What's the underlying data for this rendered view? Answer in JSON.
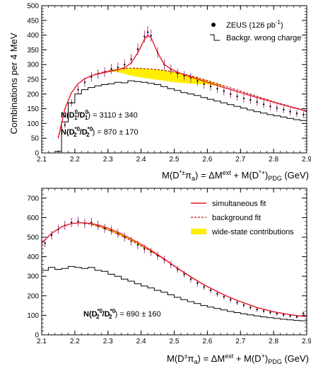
{
  "chart_data": [
    {
      "type": "line",
      "panel": "top",
      "xlim": [
        2.1,
        2.9
      ],
      "ylim": [
        0,
        500
      ],
      "xticks": [
        "2.1",
        "2.2",
        "2.3",
        "2.4",
        "2.5",
        "2.6",
        "2.7",
        "2.8",
        "2.9"
      ],
      "yticks": [
        "0",
        "50",
        "100",
        "150",
        "200",
        "250",
        "300",
        "350",
        "400",
        "450",
        "500"
      ],
      "xlabel_parts": {
        "main": "M(D",
        "sup1": "*±",
        "mid1": "π",
        "sub1": "a",
        "mid2": ") = ΔM",
        "sup2": "ext",
        "mid3": " + M(D",
        "sup3": "*+",
        "mid4": ")",
        "sub2": "PDG",
        "tail": " (GeV)"
      },
      "ylabel": "Combinations per 4 MeV",
      "legend": {
        "placement": "top-right",
        "data_label": {
          "main": "ZEUS (126 pb",
          "sup": "-1",
          "tail": ")"
        },
        "bkg_label": "Backgr. wrong charge"
      },
      "annotations": [
        {
          "pre": "N(D",
          "s1sup": "0",
          "s1sub": "1",
          "slash": "/D",
          "s2sup": "0",
          "s2sub": "1",
          "post": ") = 3110 ± 340"
        },
        {
          "pre": "N(D",
          "s1sup": "*0",
          "s1sub": "2",
          "slash": "/D",
          "s2sup": "*0",
          "s2sub": "2",
          "post": ") = 870 ± 170"
        }
      ],
      "data_points": {
        "x": [
          2.15,
          2.17,
          2.19,
          2.21,
          2.23,
          2.25,
          2.27,
          2.29,
          2.31,
          2.33,
          2.35,
          2.37,
          2.39,
          2.41,
          2.42,
          2.43,
          2.45,
          2.47,
          2.49,
          2.51,
          2.53,
          2.55,
          2.57,
          2.59,
          2.61,
          2.63,
          2.65,
          2.67,
          2.69,
          2.71,
          2.73,
          2.75,
          2.77,
          2.79,
          2.81,
          2.83,
          2.85,
          2.87,
          2.89
        ],
        "y": [
          5,
          95,
          170,
          215,
          240,
          258,
          268,
          274,
          285,
          290,
          300,
          318,
          352,
          395,
          410,
          398,
          340,
          300,
          283,
          270,
          262,
          255,
          244,
          234,
          226,
          218,
          210,
          200,
          192,
          185,
          180,
          173,
          165,
          158,
          152,
          147,
          140,
          134,
          130
        ]
      },
      "background_wrong_charge": {
        "x": [
          2.15,
          2.17,
          2.19,
          2.21,
          2.23,
          2.25,
          2.27,
          2.29,
          2.31,
          2.33,
          2.35,
          2.37,
          2.39,
          2.41,
          2.43,
          2.45,
          2.47,
          2.49,
          2.51,
          2.53,
          2.55,
          2.57,
          2.59,
          2.61,
          2.63,
          2.65,
          2.67,
          2.69,
          2.71,
          2.73,
          2.75,
          2.77,
          2.79,
          2.81,
          2.83,
          2.85,
          2.87,
          2.89
        ],
        "y": [
          5,
          105,
          170,
          200,
          215,
          222,
          228,
          232,
          235,
          240,
          238,
          245,
          242,
          240,
          236,
          232,
          225,
          218,
          212,
          205,
          200,
          195,
          188,
          182,
          176,
          170,
          164,
          158,
          152,
          146,
          140,
          135,
          130,
          126,
          122,
          117,
          113,
          110
        ]
      },
      "simultaneous_fit": {
        "x": [
          2.15,
          2.17,
          2.19,
          2.21,
          2.23,
          2.25,
          2.27,
          2.29,
          2.31,
          2.33,
          2.35,
          2.37,
          2.39,
          2.41,
          2.42,
          2.43,
          2.45,
          2.47,
          2.49,
          2.51,
          2.55,
          2.6,
          2.65,
          2.7,
          2.75,
          2.8,
          2.85,
          2.9
        ],
        "y": [
          50,
          150,
          205,
          235,
          252,
          262,
          268,
          273,
          278,
          283,
          290,
          305,
          340,
          385,
          400,
          392,
          340,
          300,
          285,
          274,
          258,
          240,
          222,
          205,
          188,
          172,
          156,
          142
        ]
      },
      "background_fit": {
        "x": [
          2.15,
          2.17,
          2.19,
          2.21,
          2.23,
          2.25,
          2.27,
          2.29,
          2.31,
          2.33,
          2.35,
          2.37,
          2.4,
          2.45,
          2.5,
          2.55,
          2.6,
          2.65,
          2.7,
          2.75,
          2.8,
          2.85,
          2.9
        ],
        "y": [
          50,
          150,
          205,
          235,
          252,
          262,
          270,
          276,
          280,
          284,
          287,
          288,
          287,
          283,
          275,
          262,
          246,
          228,
          210,
          192,
          174,
          158,
          143
        ]
      },
      "wide_state_band": {
        "x": [
          2.3,
          2.33,
          2.36,
          2.4,
          2.45,
          2.5,
          2.55,
          2.6,
          2.65
        ],
        "upper": [
          280,
          285,
          288,
          287,
          283,
          275,
          262,
          246,
          228
        ],
        "lower": [
          278,
          275,
          265,
          256,
          248,
          240,
          235,
          232,
          226
        ]
      }
    },
    {
      "type": "line",
      "panel": "bottom",
      "xlim": [
        2.1,
        2.9
      ],
      "ylim": [
        0,
        750
      ],
      "xticks": [
        "2.1",
        "2.2",
        "2.3",
        "2.4",
        "2.5",
        "2.6",
        "2.7",
        "2.8",
        "2.9"
      ],
      "yticks": [
        "0",
        "100",
        "200",
        "300",
        "400",
        "500",
        "600",
        "700"
      ],
      "xlabel_parts": {
        "main": "M(D",
        "sup1": "±",
        "mid1": "π",
        "sub1": "a",
        "mid2": ") = ΔM",
        "sup2": "ext",
        "mid3": " + M(D",
        "sup3": "+",
        "mid4": ")",
        "sub2": "PDG",
        "tail": " (GeV)"
      },
      "legend": {
        "placement": "top-right",
        "entries": [
          "simultaneous fit",
          "background fit",
          "wide-state contributions"
        ],
        "colors": {
          "fit": "#e8192c",
          "band": "#ffee00"
        }
      },
      "annotations": [
        {
          "pre": "N(D",
          "s1sup": "*0",
          "s1sub": "2",
          "slash": "/D",
          "s2sup": "*0",
          "s2sub": "2",
          "post": ") = 690 ± 160"
        }
      ],
      "data_points": {
        "x": [
          2.11,
          2.13,
          2.15,
          2.17,
          2.19,
          2.21,
          2.23,
          2.25,
          2.27,
          2.29,
          2.31,
          2.33,
          2.35,
          2.37,
          2.39,
          2.41,
          2.43,
          2.45,
          2.47,
          2.49,
          2.51,
          2.53,
          2.55,
          2.57,
          2.59,
          2.61,
          2.63,
          2.65,
          2.67,
          2.69,
          2.71,
          2.73,
          2.75,
          2.77,
          2.79,
          2.81,
          2.83,
          2.85,
          2.87,
          2.89
        ],
        "y": [
          470,
          510,
          540,
          560,
          575,
          580,
          570,
          575,
          560,
          545,
          535,
          520,
          500,
          480,
          460,
          440,
          425,
          405,
          385,
          360,
          335,
          310,
          285,
          265,
          245,
          228,
          210,
          195,
          180,
          165,
          152,
          140,
          130,
          122,
          115,
          108,
          102,
          97,
          92,
          110
        ]
      },
      "background_wrong_charge": {
        "x": [
          2.11,
          2.13,
          2.15,
          2.17,
          2.19,
          2.21,
          2.23,
          2.25,
          2.27,
          2.29,
          2.31,
          2.33,
          2.35,
          2.37,
          2.39,
          2.41,
          2.43,
          2.45,
          2.47,
          2.49,
          2.51,
          2.53,
          2.55,
          2.57,
          2.59,
          2.61,
          2.63,
          2.65,
          2.67,
          2.69,
          2.71,
          2.73,
          2.75,
          2.77,
          2.79,
          2.81,
          2.83,
          2.85,
          2.87,
          2.89
        ],
        "y": [
          330,
          345,
          335,
          340,
          350,
          345,
          340,
          345,
          330,
          325,
          310,
          300,
          285,
          275,
          262,
          250,
          240,
          228,
          218,
          205,
          192,
          180,
          170,
          160,
          150,
          142,
          135,
          128,
          120,
          114,
          108,
          102,
          97,
          92,
          88,
          84,
          80,
          77,
          74,
          72
        ]
      },
      "simultaneous_fit": {
        "x": [
          2.1,
          2.13,
          2.16,
          2.19,
          2.22,
          2.25,
          2.28,
          2.31,
          2.34,
          2.37,
          2.4,
          2.43,
          2.46,
          2.49,
          2.52,
          2.55,
          2.58,
          2.61,
          2.64,
          2.67,
          2.7,
          2.75,
          2.8,
          2.85,
          2.9
        ],
        "y": [
          470,
          520,
          553,
          570,
          574,
          570,
          558,
          540,
          517,
          491,
          463,
          433,
          400,
          365,
          330,
          297,
          266,
          238,
          213,
          190,
          170,
          140,
          118,
          103,
          92
        ]
      },
      "background_fit": {
        "x": [
          2.1,
          2.13,
          2.16,
          2.19,
          2.22,
          2.25,
          2.28,
          2.31,
          2.34,
          2.37,
          2.4,
          2.43,
          2.46,
          2.49,
          2.52,
          2.55,
          2.58,
          2.61,
          2.64,
          2.67,
          2.7,
          2.75,
          2.8,
          2.85,
          2.9
        ],
        "y": [
          470,
          520,
          553,
          570,
          574,
          566,
          550,
          530,
          507,
          482,
          455,
          427,
          397,
          363,
          328,
          296,
          265,
          238,
          213,
          190,
          170,
          140,
          118,
          103,
          92
        ]
      },
      "wide_state_band": {
        "x": [
          2.22,
          2.25,
          2.28,
          2.31,
          2.34,
          2.37,
          2.4,
          2.43,
          2.46,
          2.49,
          2.52
        ],
        "upper": [
          574,
          570,
          558,
          540,
          517,
          491,
          463,
          433,
          400,
          365,
          330
        ],
        "lower": [
          574,
          566,
          550,
          530,
          507,
          482,
          455,
          427,
          397,
          363,
          328
        ]
      }
    }
  ]
}
